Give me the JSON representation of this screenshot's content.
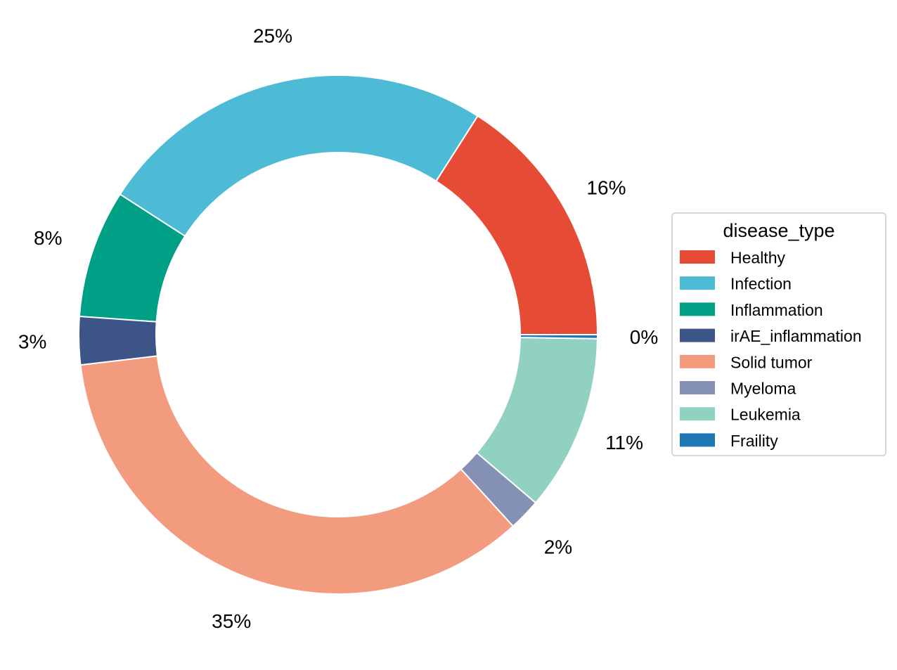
{
  "chart_data": {
    "type": "pie",
    "variant": "donut",
    "categories": [
      "Healthy",
      "Infection",
      "Inflammation",
      "irAE_inflammation",
      "Solid tumor",
      "Myeloma",
      "Leukemia",
      "Fraility"
    ],
    "values": [
      16,
      25,
      8,
      3,
      35,
      2,
      11,
      0.25
    ],
    "labels": [
      "16%",
      "25%",
      "8%",
      "3%",
      "35%",
      "2%",
      "11%",
      "0%"
    ],
    "colors": [
      "#E64B35",
      "#4DBBD5",
      "#00A087",
      "#3C5488",
      "#F39B7F",
      "#8491B4",
      "#91D1C2",
      "#1F77B4"
    ],
    "start_angle_deg": 0,
    "direction": "counterclockwise",
    "legend": {
      "title": "disease_type",
      "placement": "right"
    }
  }
}
